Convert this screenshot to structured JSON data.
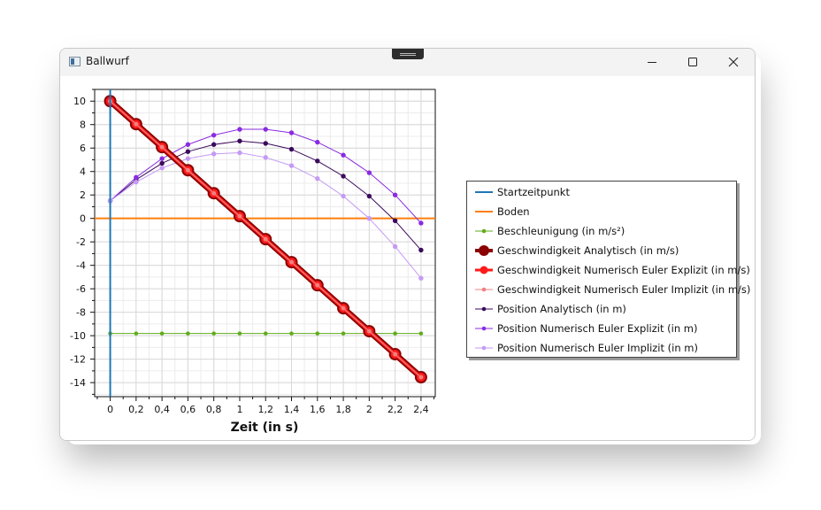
{
  "window": {
    "title": "Ballwurf"
  },
  "chart_data": {
    "type": "line",
    "x": [
      0,
      0.2,
      0.4,
      0.6,
      0.8,
      1,
      1.2,
      1.4,
      1.6,
      1.8,
      2,
      2.2,
      2.4
    ],
    "x_tick_labels": [
      "0",
      "0,2",
      "0,4",
      "0,6",
      "0,8",
      "1",
      "1,2",
      "1,4",
      "1,6",
      "1,8",
      "2",
      "2,2",
      "2,4"
    ],
    "y_tick_labels": [
      "10",
      "8",
      "6",
      "4",
      "2",
      "0",
      "-2",
      "-4",
      "-6",
      "-8",
      "-10",
      "-12",
      "-14"
    ],
    "y_ticks": [
      10,
      8,
      6,
      4,
      2,
      0,
      -2,
      -4,
      -6,
      -8,
      -10,
      -12,
      -14
    ],
    "xlabel": "Zeit (in s)",
    "ylabel": "",
    "xlim": [
      -0.12,
      2.51
    ],
    "ylim": [
      -15.2,
      11.0
    ],
    "grid": true,
    "legend_position": "right",
    "series": [
      {
        "name": "Startzeitpunkt",
        "kind": "vline",
        "x": 0,
        "color": "#1f77b4"
      },
      {
        "name": "Boden",
        "kind": "hline",
        "y": 0,
        "color": "#ff7f0e"
      },
      {
        "name": "Beschleunigung (in m/s²)",
        "color": "#5fad1a",
        "values": [
          -9.81,
          -9.81,
          -9.81,
          -9.81,
          -9.81,
          -9.81,
          -9.81,
          -9.81,
          -9.81,
          -9.81,
          -9.81,
          -9.81,
          -9.81
        ]
      },
      {
        "name": "Geschwindigkeit Analytisch (in m/s)",
        "color": "#8b0000",
        "values": [
          10,
          8.04,
          6.08,
          4.11,
          2.15,
          0.19,
          -1.77,
          -3.73,
          -5.7,
          -7.66,
          -9.62,
          -11.58,
          -13.54
        ]
      },
      {
        "name": "Geschwindigkeit Numerisch Euler Explizit (in m/s)",
        "color": "#ff1a1a",
        "values": [
          10,
          8.04,
          6.08,
          4.11,
          2.15,
          0.19,
          -1.77,
          -3.73,
          -5.7,
          -7.66,
          -9.62,
          -11.58,
          -13.54
        ]
      },
      {
        "name": "Geschwindigkeit Numerisch Euler Implizit (in m/s)",
        "color": "#f08080",
        "values": [
          10,
          8.04,
          6.08,
          4.11,
          2.15,
          0.19,
          -1.77,
          -3.73,
          -5.7,
          -7.66,
          -9.62,
          -11.58,
          -13.54
        ]
      },
      {
        "name": "Position Analytisch (in m)",
        "color": "#3b0a5c",
        "values": [
          1.5,
          3.3,
          4.7,
          5.7,
          6.3,
          6.6,
          6.4,
          5.9,
          4.9,
          3.6,
          1.9,
          -0.2,
          -2.7
        ]
      },
      {
        "name": "Position Numerisch Euler Explizit (in m)",
        "color": "#8a2be2",
        "values": [
          1.5,
          3.5,
          5.1,
          6.3,
          7.1,
          7.6,
          7.6,
          7.3,
          6.5,
          5.4,
          3.9,
          2.0,
          -0.4
        ]
      },
      {
        "name": "Position Numerisch Euler Implizit (in m)",
        "color": "#c49af5",
        "values": [
          1.5,
          3.1,
          4.3,
          5.1,
          5.5,
          5.6,
          5.2,
          4.5,
          3.4,
          1.9,
          0.0,
          -2.4,
          -5.1
        ]
      }
    ]
  }
}
